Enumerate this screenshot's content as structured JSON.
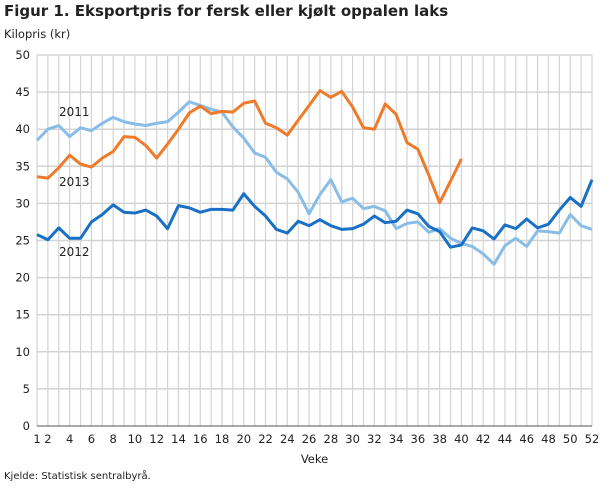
{
  "chart_data": {
    "type": "line",
    "title": "Figur 1. Eksportpris for fersk eller kjølt oppalen laks",
    "ylabel": "Kilopris (kr)",
    "xlabel": "Veke",
    "source": "Kjelde: Statistisk sentralbyrå.",
    "ylim": [
      0,
      50
    ],
    "xlim": [
      1,
      52
    ],
    "yticks": [
      0,
      5,
      10,
      15,
      20,
      25,
      30,
      35,
      40,
      45,
      50
    ],
    "xticks": [
      1,
      2,
      4,
      6,
      8,
      10,
      12,
      14,
      16,
      18,
      20,
      22,
      24,
      26,
      28,
      30,
      32,
      34,
      36,
      38,
      40,
      42,
      44,
      46,
      48,
      50,
      52
    ],
    "grid": true,
    "series": [
      {
        "name": "2011",
        "color": "#88bde8",
        "values": [
          38.5,
          40,
          40.5,
          39,
          40.2,
          39.8,
          40.8,
          41.6,
          41,
          40.7,
          40.5,
          40.8,
          41,
          42.3,
          43.7,
          43.2,
          42.7,
          42.3,
          40.3,
          38.8,
          36.8,
          36.2,
          34.2,
          33.3,
          31.5,
          28.6,
          31.2,
          33.2,
          30.2,
          30.7,
          29.3,
          29.6,
          29,
          26.6,
          27.3,
          27.5,
          26.1,
          26.6,
          25.3,
          24.6,
          24.2,
          23.2,
          21.8,
          24.3,
          25.3,
          24.2,
          26.3,
          26.2,
          26,
          28.5,
          27,
          26.5
        ]
      },
      {
        "name": "2012",
        "color": "#1a70c4",
        "values": [
          25.8,
          25.1,
          26.7,
          25.3,
          25.3,
          27.5,
          28.5,
          29.8,
          28.8,
          28.7,
          29.1,
          28.3,
          26.6,
          29.7,
          29.4,
          28.8,
          29.2,
          29.2,
          29.1,
          31.3,
          29.6,
          28.3,
          26.5,
          26,
          27.6,
          27,
          27.8,
          27,
          26.5,
          26.6,
          27.2,
          28.3,
          27.4,
          27.6,
          29.1,
          28.6,
          26.9,
          26.2,
          24.1,
          24.4,
          26.7,
          26.3,
          25.2,
          27.1,
          26.6,
          27.9,
          26.7,
          27.2,
          29.1,
          30.8,
          29.6,
          33.2
        ]
      },
      {
        "name": "2013",
        "color": "#ee7a2a",
        "values": [
          33.6,
          33.4,
          34.8,
          36.5,
          35.3,
          34.9,
          36.1,
          37,
          39,
          38.9,
          37.8,
          36.1,
          38,
          40,
          42.2,
          43.1,
          42.1,
          42.4,
          42.3,
          43.5,
          43.8,
          40.8,
          40.2,
          39.2,
          41.2,
          43.2,
          45.2,
          44.3,
          45.1,
          43,
          40.2,
          40,
          43.4,
          42,
          38.2,
          37.3,
          33.8,
          30.1,
          33,
          36
        ]
      }
    ]
  }
}
